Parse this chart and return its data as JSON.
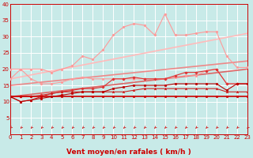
{
  "background_color": "#c8eae8",
  "grid_color": "#b0d8d8",
  "xlabel": "Vent moyen/en rafales ( km/h )",
  "xlim": [
    0,
    23
  ],
  "ylim": [
    0,
    40
  ],
  "yticks": [
    5,
    10,
    15,
    20,
    25,
    30,
    35,
    40
  ],
  "xticks": [
    0,
    1,
    2,
    3,
    4,
    5,
    6,
    7,
    8,
    9,
    10,
    11,
    12,
    13,
    14,
    15,
    16,
    17,
    18,
    19,
    20,
    21,
    22,
    23
  ],
  "lines": [
    {
      "x": [
        0,
        1,
        2,
        3,
        4,
        5,
        6,
        7,
        8,
        9,
        10,
        11,
        12,
        13,
        14,
        15,
        16,
        17,
        18,
        19,
        20,
        21,
        22,
        23
      ],
      "y": [
        17,
        20,
        20,
        20,
        19,
        20,
        21,
        24,
        23,
        26,
        30.5,
        33,
        34,
        33.5,
        30.5,
        37,
        30.5,
        30.5,
        31,
        31.5,
        31.5,
        24,
        20.5,
        20.5
      ],
      "color": "#ff9999",
      "lw": 0.8,
      "marker": "o",
      "ms": 2.0
    },
    {
      "x": [
        0,
        23
      ],
      "y": [
        17.0,
        31.0
      ],
      "color": "#ffbbbb",
      "lw": 1.2,
      "marker": null,
      "ms": 0
    },
    {
      "x": [
        0,
        1,
        2,
        3,
        4,
        5,
        6,
        7,
        8,
        9,
        10,
        11,
        12,
        13,
        14,
        15,
        16,
        17,
        18,
        19,
        20,
        21,
        22,
        23
      ],
      "y": [
        20,
        20,
        17,
        15.5,
        15.5,
        16,
        17,
        17.5,
        17,
        17,
        17,
        17,
        17,
        17,
        17,
        17,
        17.5,
        18,
        18,
        19.5,
        20,
        15.5,
        15.5,
        15.5
      ],
      "color": "#ff9999",
      "lw": 0.8,
      "marker": "o",
      "ms": 2.0
    },
    {
      "x": [
        0,
        23
      ],
      "y": [
        15.0,
        22.5
      ],
      "color": "#ee8888",
      "lw": 1.2,
      "marker": null,
      "ms": 0
    },
    {
      "x": [
        0,
        1,
        2,
        3,
        4,
        5,
        6,
        7,
        8,
        9,
        10,
        11,
        12,
        13,
        14,
        15,
        16,
        17,
        18,
        19,
        20,
        21,
        22,
        23
      ],
      "y": [
        11.5,
        11.5,
        11.5,
        12,
        12.5,
        13,
        13.5,
        14,
        14,
        14.5,
        17,
        17,
        17.5,
        17,
        17,
        17,
        18,
        19,
        19,
        19.5,
        20,
        15.5,
        15.5,
        15.5
      ],
      "color": "#dd3333",
      "lw": 0.8,
      "marker": "D",
      "ms": 1.8
    },
    {
      "x": [
        0,
        1,
        2,
        3,
        4,
        5,
        6,
        7,
        8,
        9,
        10,
        11,
        12,
        13,
        14,
        15,
        16,
        17,
        18,
        19,
        20,
        21,
        22,
        23
      ],
      "y": [
        11.5,
        10,
        10.5,
        11.5,
        12.5,
        13,
        13,
        13,
        13,
        13,
        13,
        13,
        13.5,
        14,
        14,
        14,
        14,
        14,
        14,
        14,
        14,
        13,
        13,
        13
      ],
      "color": "#cc2222",
      "lw": 0.8,
      "marker": "^",
      "ms": 2.0
    },
    {
      "x": [
        0,
        1,
        2,
        3,
        4,
        5,
        6,
        7,
        8,
        9,
        10,
        11,
        12,
        13,
        14,
        15,
        16,
        17,
        18,
        19,
        20,
        21,
        22,
        23
      ],
      "y": [
        11.5,
        11.5,
        11.5,
        11.5,
        11.5,
        11.5,
        11.5,
        11.5,
        11.5,
        11.5,
        11.5,
        11.5,
        11.5,
        11.5,
        11.5,
        11.5,
        11.5,
        11.5,
        11.5,
        11.5,
        11.5,
        11.5,
        11.5,
        11.5
      ],
      "color": "#cc0000",
      "lw": 1.2,
      "marker": "o",
      "ms": 2.0
    },
    {
      "x": [
        0,
        23
      ],
      "y": [
        11.5,
        20.0
      ],
      "color": "#dd6666",
      "lw": 1.2,
      "marker": null,
      "ms": 0
    },
    {
      "x": [
        0,
        1,
        2,
        3,
        4,
        5,
        6,
        7,
        8,
        9,
        10,
        11,
        12,
        13,
        14,
        15,
        16,
        17,
        18,
        19,
        20,
        21,
        22,
        23
      ],
      "y": [
        11.5,
        10,
        10.5,
        11,
        11.5,
        12,
        12.5,
        13,
        13,
        13,
        14,
        14.5,
        15,
        15,
        15,
        15,
        15.5,
        15.5,
        15.5,
        15.5,
        15.5,
        13.5,
        15.5,
        15.5
      ],
      "color": "#bb0000",
      "lw": 0.8,
      "marker": "o",
      "ms": 2.0
    }
  ],
  "arrow_color": "#cc0000",
  "axis_color": "#cc0000",
  "tick_fontsize": 5.0,
  "xlabel_fontsize": 6.5
}
